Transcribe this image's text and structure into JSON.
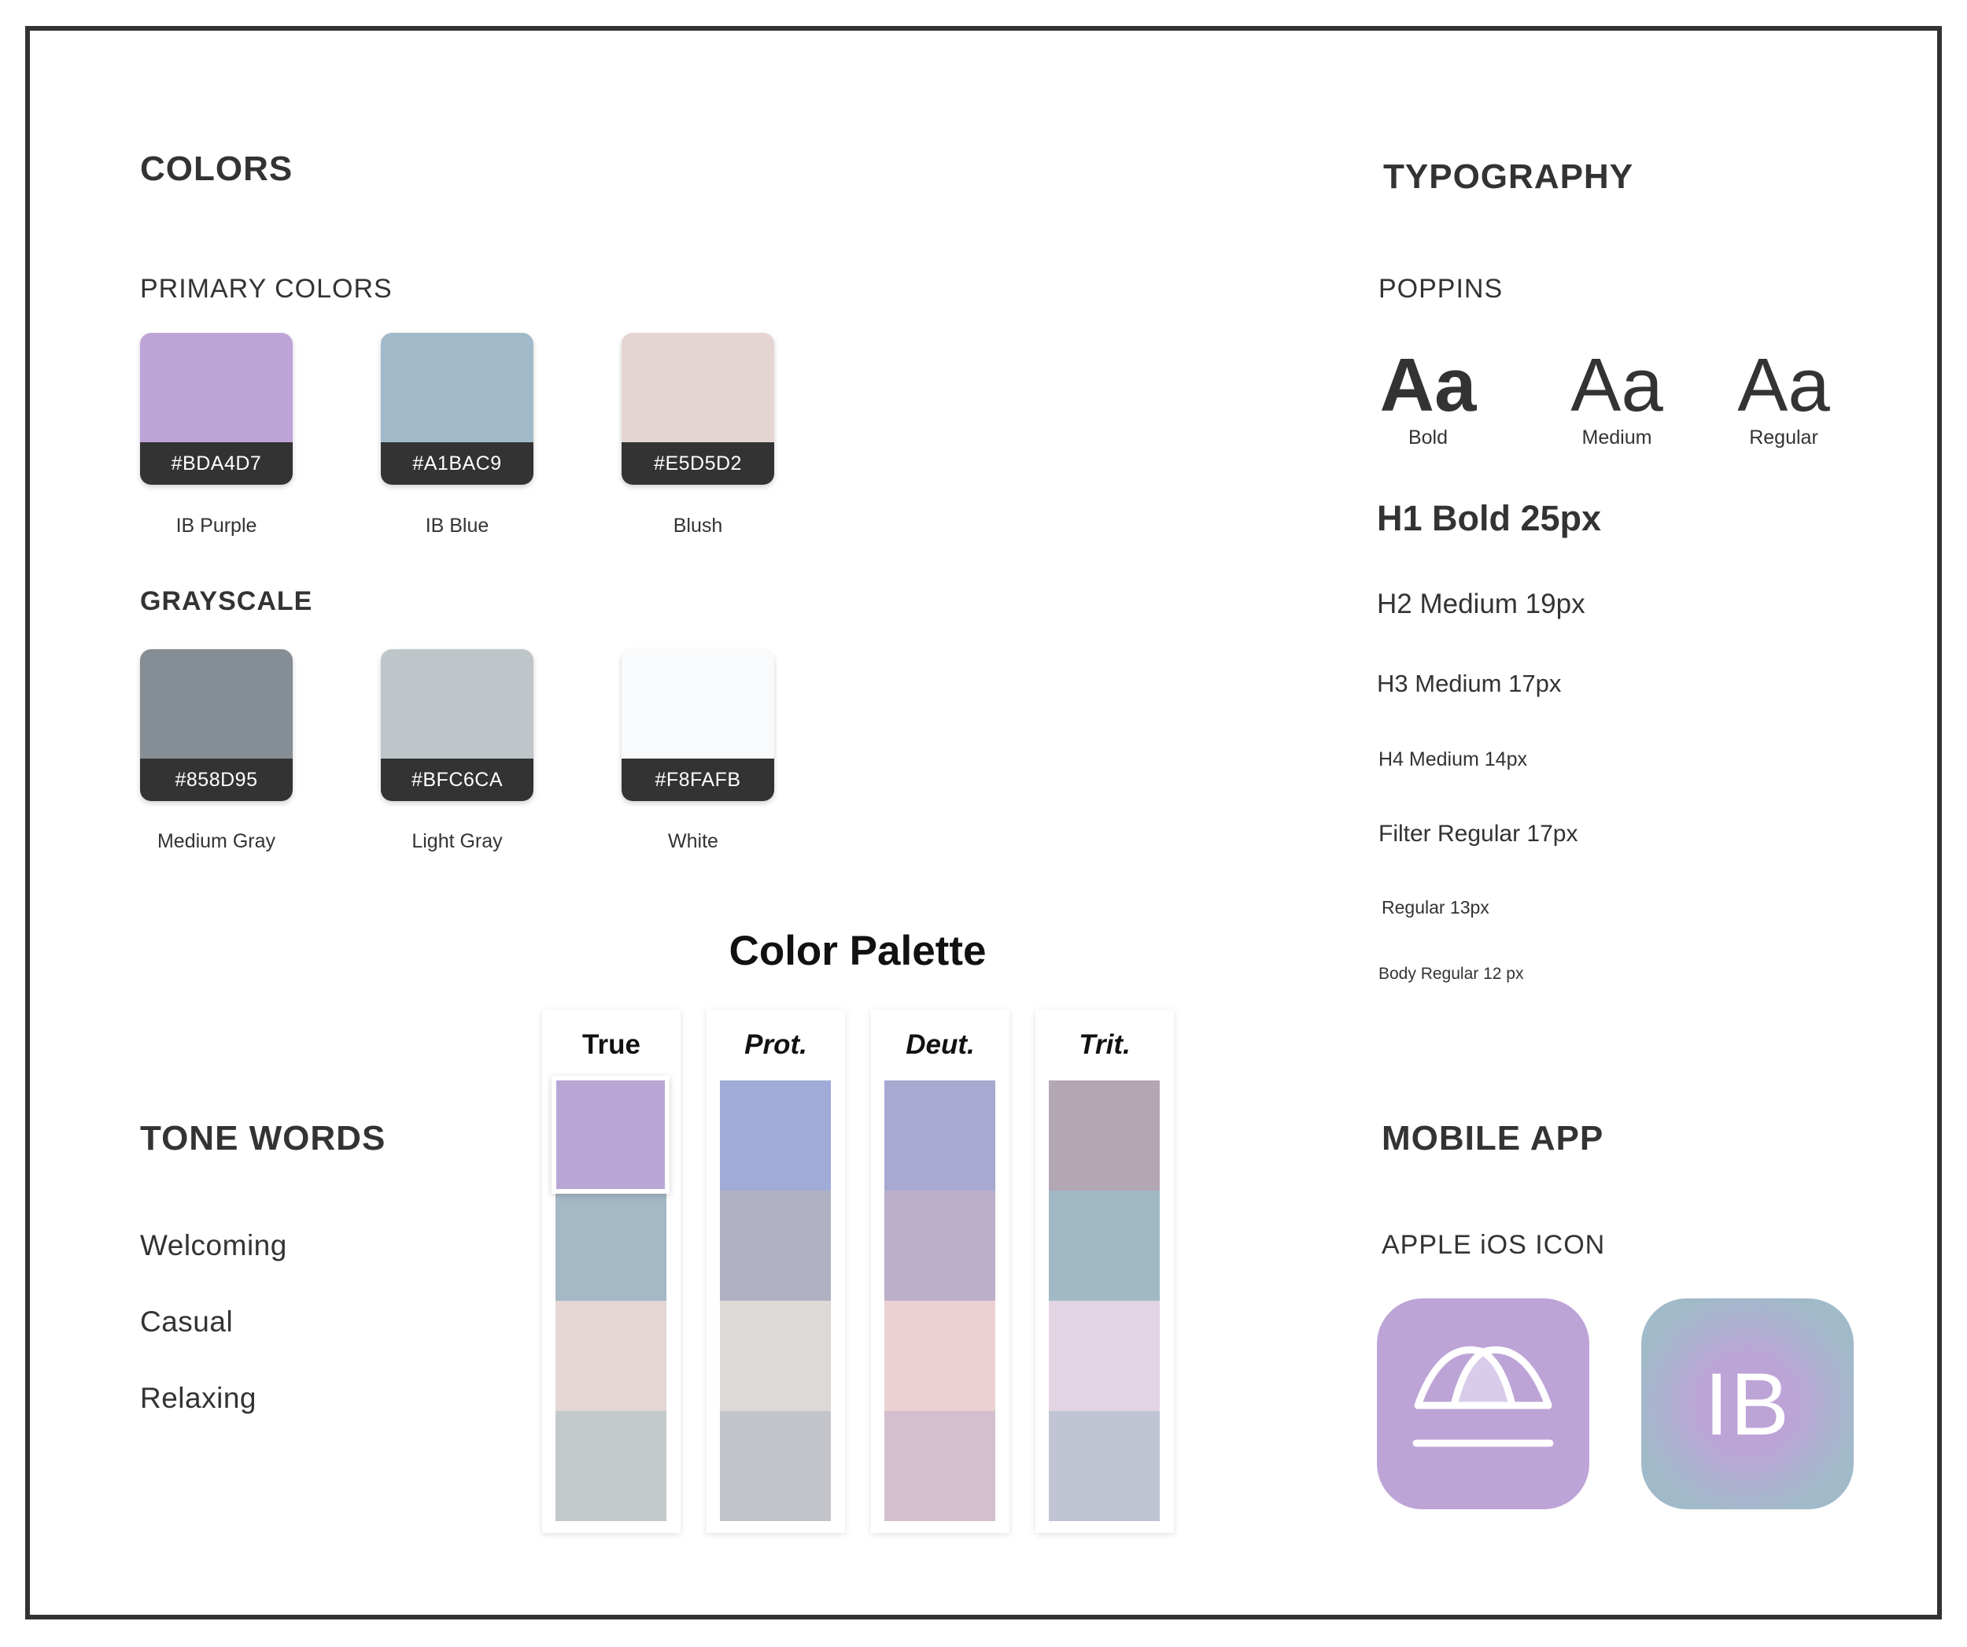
{
  "colors": {
    "title": "COLORS",
    "primary_title": "PRIMARY COLORS",
    "primary": [
      {
        "hex": "#BDA4D7",
        "name": "IB Purple",
        "color": "#BDA4D7"
      },
      {
        "hex": "#A1BAC9",
        "name": "IB Blue",
        "color": "#A1BAC9"
      },
      {
        "hex": "#E5D5D2",
        "name": "Blush",
        "color": "#E5D5D2"
      }
    ],
    "grayscale_title": "GRAYSCALE",
    "grayscale": [
      {
        "hex": "#858D95",
        "name": "Medium Gray",
        "color": "#858D95"
      },
      {
        "hex": "#BFC6CA",
        "name": "Light Gray",
        "color": "#BFC6CA"
      },
      {
        "hex": "#F8FAFB",
        "name": "White",
        "color": "#F8FAFB"
      }
    ]
  },
  "typography": {
    "title": "TYPOGRAPHY",
    "font_name": "POPPINS",
    "samples": [
      {
        "glyph": "Aa",
        "label": "Bold"
      },
      {
        "glyph": "Aa",
        "label": "Medium"
      },
      {
        "glyph": "Aa",
        "label": "Regular"
      }
    ],
    "styles": [
      "H1 Bold 25px",
      "H2 Medium 19px",
      "H3 Medium 17px",
      "H4 Medium 14px",
      "Filter Regular 17px",
      "Regular 13px",
      "Body Regular 12 px"
    ]
  },
  "palette": {
    "title": "Color Palette",
    "columns": [
      {
        "label": "True",
        "colors": [
          "#B8A6D4",
          "#A4B8C5",
          "#E3D6D4",
          "#C3C8CB"
        ]
      },
      {
        "label": "Prot.",
        "colors": [
          "#A0ABD7",
          "#AFB1C3",
          "#DDD9D6",
          "#C4C4CB"
        ]
      },
      {
        "label": "Deut.",
        "colors": [
          "#A8A9D1",
          "#BBAFC9",
          "#EBD1D4",
          "#D3BFCD"
        ]
      },
      {
        "label": "Trit.",
        "colors": [
          "#B4A7B4",
          "#A0B9C5",
          "#E2D4E3",
          "#C1C4D3"
        ]
      }
    ]
  },
  "tone": {
    "title": "TONE WORDS",
    "words": [
      "Welcoming",
      "Casual",
      "Relaxing"
    ]
  },
  "mobile": {
    "title": "MOBILE APP",
    "subtitle": "APPLE iOS ICON",
    "icon_monogram": "IB",
    "icon_bg_purple": "#BDA4D7",
    "icon_bg_blue": "#A1BAC9"
  }
}
